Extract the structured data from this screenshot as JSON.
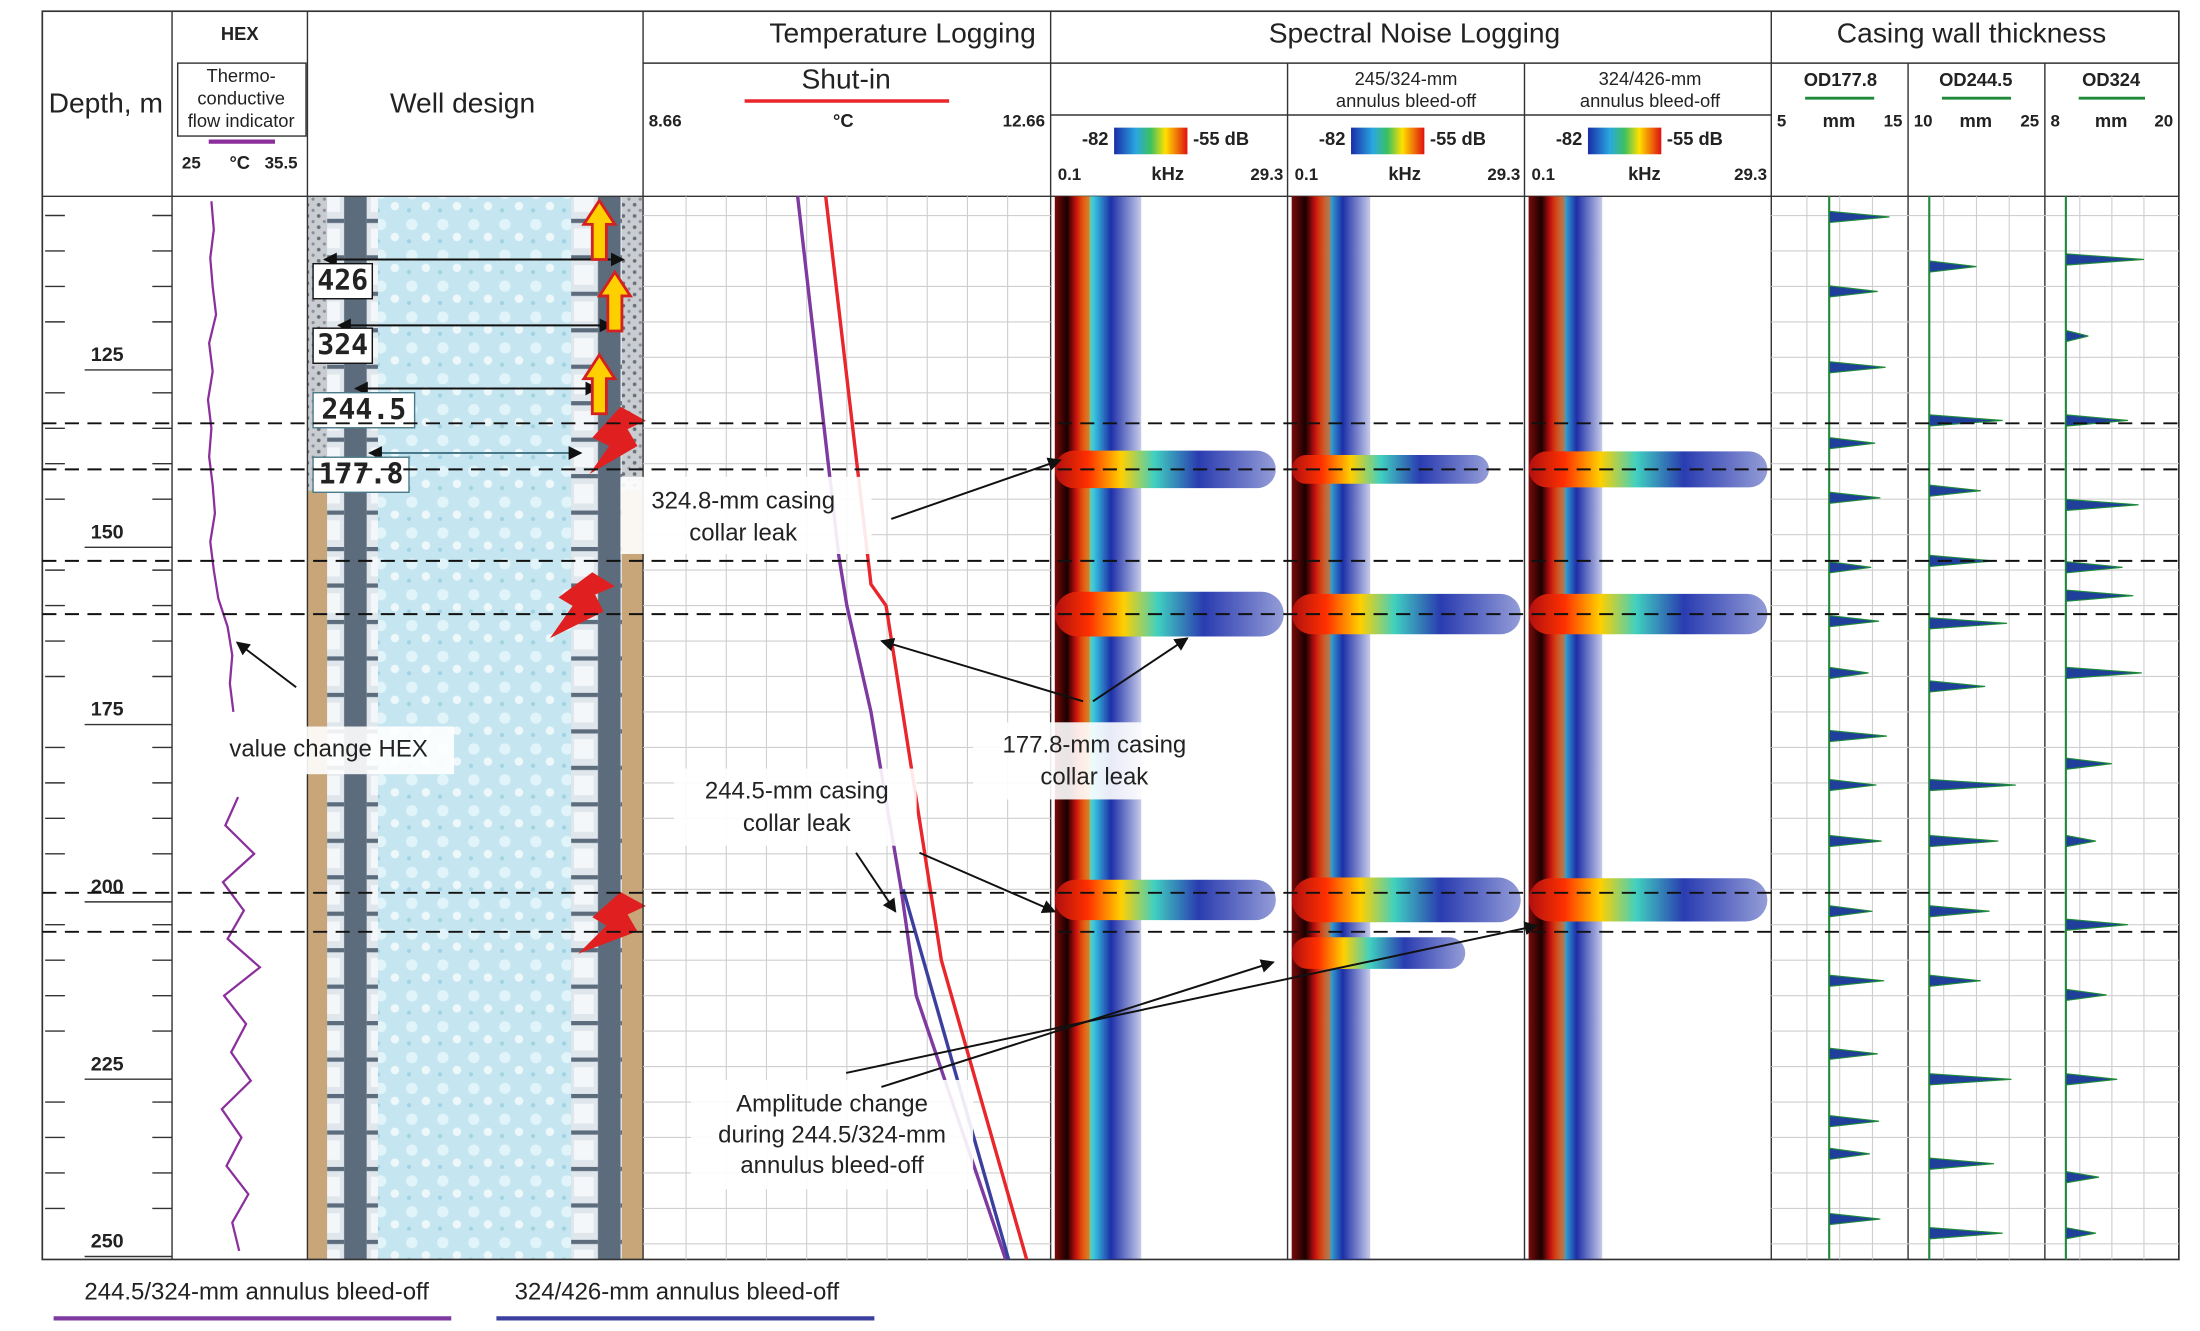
{
  "depth": {
    "label": "Depth, m",
    "ylim": [
      102.3,
      252.2
    ],
    "yticks": [
      125,
      150,
      175,
      200,
      225,
      250
    ],
    "minor_ticks": [
      105,
      110,
      115,
      120,
      130,
      135,
      140,
      145,
      155,
      160,
      165,
      170,
      180,
      185,
      190,
      195,
      205,
      210,
      215,
      220,
      230,
      235,
      240,
      245
    ]
  },
  "leak_depths": [
    134.3,
    140.8,
    153.7,
    161.2,
    200.5,
    206.0
  ],
  "groups": {
    "snl": "Spectral Noise Logging",
    "casing": "Casing wall thickness"
  },
  "chart_data": [
    {
      "type": "line",
      "title": "HEX",
      "title_lines": [
        "Thermo-",
        "conductive",
        "flow indicator"
      ],
      "xlim": [
        25,
        35.5
      ],
      "xticks": [
        25,
        35.5
      ],
      "x_unit": "°C",
      "series": [
        {
          "color": "#8b2f9c",
          "depth": [
            103,
            107,
            111,
            115,
            119,
            123,
            127,
            131,
            135,
            139,
            143,
            147,
            151,
            155,
            159,
            163,
            167,
            171,
            175,
            179,
            183,
            187,
            191,
            195,
            199,
            203,
            207,
            211,
            215,
            219,
            223,
            227,
            231,
            235,
            239,
            243,
            247,
            251
          ],
          "values": [
            27.8,
            28.0,
            27.7,
            27.9,
            28.2,
            27.6,
            27.9,
            27.5,
            27.8,
            27.6,
            27.9,
            28.1,
            27.7,
            28.0,
            28.4,
            29.2,
            29.6,
            29.4,
            29.7,
            null,
            null,
            30.1,
            29.0,
            31.5,
            28.8,
            30.6,
            29.2,
            32.0,
            28.9,
            30.8,
            29.5,
            31.2,
            28.7,
            30.4,
            29.1,
            31.0,
            29.6,
            30.2
          ]
        }
      ]
    },
    {
      "type": "line",
      "title": "Temperature Logging",
      "xlim": [
        8.66,
        12.66
      ],
      "xticks": [
        8.66,
        12.66
      ],
      "x_unit": "°C",
      "grid": true,
      "xgrid": [
        9.06,
        9.46,
        9.86,
        10.26,
        10.66,
        11.06,
        11.46,
        11.86,
        12.26
      ],
      "series": [
        {
          "name": "Shut-in",
          "color": "#e8262b",
          "depth": [
            102.3,
            157,
            160,
            210,
            252.2
          ],
          "values": [
            10.45,
            10.9,
            11.05,
            11.6,
            12.45
          ]
        },
        {
          "name": "244.5/324-mm annulus bleed-off",
          "color": "#7e3aa0",
          "depth": [
            102.3,
            153,
            160,
            175,
            200,
            215,
            252.2
          ],
          "values": [
            10.17,
            10.58,
            10.66,
            10.9,
            11.2,
            11.35,
            12.24
          ]
        },
        {
          "name": "324/426-mm annulus bleed-off",
          "color": "#3b3f9e",
          "depth": [
            200,
            252.2
          ],
          "values": [
            11.22,
            12.27
          ]
        }
      ]
    },
    {
      "type": "heatmap",
      "xlim": [
        0.1,
        29.3
      ],
      "xticks": [
        0.1,
        29.3
      ],
      "x_unit": "kHz",
      "zlim": [
        -82,
        -55
      ],
      "zticks": [
        -82,
        {
          "value": -55,
          "label": "-55 dB"
        }
      ],
      "column": {
        "core_khz": 4.5,
        "halo_khz": 11
      },
      "band_depths": [
        140.8,
        161.2,
        201.5
      ],
      "band_khz": [
        28,
        29,
        28
      ],
      "band_db": [
        -62,
        -57,
        -60
      ]
    },
    {
      "type": "heatmap",
      "title_lines": [
        "245/324-mm",
        "annulus bleed-off"
      ],
      "xlim": [
        0.1,
        29.3
      ],
      "xticks": [
        0.1,
        29.3
      ],
      "x_unit": "kHz",
      "zlim": [
        -82,
        -55
      ],
      "zticks": [
        -82,
        {
          "value": -55,
          "label": "-55 dB"
        }
      ],
      "column": {
        "core_khz": 5,
        "halo_khz": 10
      },
      "band_depths": [
        140.8,
        161.2,
        201.5,
        209
      ],
      "band_khz": [
        25,
        29,
        29,
        22
      ],
      "band_db": [
        -68,
        -60,
        -57,
        -66
      ]
    },
    {
      "type": "heatmap",
      "title_lines": [
        "324/426-mm",
        "annulus bleed-off"
      ],
      "xlim": [
        0.1,
        29.3
      ],
      "xticks": [
        0.1,
        29.3
      ],
      "x_unit": "kHz",
      "zlim": [
        -82,
        -55
      ],
      "zticks": [
        -82,
        {
          "value": -55,
          "label": "-55 dB"
        }
      ],
      "column": {
        "core_khz": 4.5,
        "halo_khz": 9
      },
      "band_depths": [
        140.8,
        161.2,
        201.5
      ],
      "band_khz": [
        29,
        29,
        29
      ],
      "band_db": [
        -63,
        -60,
        -58
      ]
    },
    {
      "type": "spike",
      "title": "OD177.8",
      "color": "#1f8a3a",
      "spike_color": "#1f3f9a",
      "xlim": [
        5,
        15
      ],
      "xticks": [
        5,
        15
      ],
      "x_unit": "mm",
      "grid": true,
      "xgrid": [
        7.5,
        10,
        12.5
      ],
      "nominal": 9.2,
      "collar_depths": [
        105.2,
        115.7,
        126.4,
        137.1,
        144.8,
        154.6,
        162.2,
        169.5,
        178.4,
        185.3,
        193.2,
        203.1,
        212.9,
        223.2,
        232.7,
        237.3,
        246.5
      ],
      "values": [
        13.8,
        12.9,
        13.5,
        12.7,
        13.1,
        12.4,
        13.0,
        12.2,
        13.6,
        12.8,
        13.2,
        12.5,
        13.4,
        12.9,
        13.0,
        12.3,
        13.1
      ]
    },
    {
      "type": "spike",
      "title": "OD244.5",
      "color": "#1f8a3a",
      "spike_color": "#1f3f9a",
      "xlim": [
        10,
        25
      ],
      "xticks": [
        10,
        25
      ],
      "x_unit": "mm",
      "grid": true,
      "xgrid": [
        13.75,
        17.5,
        21.25
      ],
      "nominal": 12.1,
      "collar_depths": [
        112.2,
        133.9,
        143.8,
        153.7,
        162.5,
        171.4,
        185.3,
        193.2,
        203.1,
        212.9,
        226.8,
        238.7,
        248.5
      ],
      "values": [
        17.5,
        20.5,
        18.0,
        19.5,
        21.0,
        18.5,
        22.0,
        20.0,
        19.0,
        18.0,
        21.5,
        19.5,
        20.5
      ]
    },
    {
      "type": "spike",
      "title": "OD324",
      "color": "#1f8a3a",
      "spike_color": "#1f3f9a",
      "xlim": [
        8,
        20
      ],
      "xticks": [
        8,
        20
      ],
      "x_unit": "mm",
      "grid": true,
      "xgrid": [
        11,
        14,
        17
      ],
      "nominal": 9.7,
      "collar_depths": [
        111.2,
        122.0,
        133.9,
        145.8,
        154.6,
        158.6,
        169.5,
        182.3,
        193.2,
        205.0,
        214.9,
        226.8,
        240.6,
        248.5
      ],
      "values": [
        17.0,
        11.8,
        15.5,
        16.5,
        15.0,
        16.0,
        16.8,
        14.0,
        12.5,
        15.5,
        13.5,
        14.5,
        12.8,
        12.5
      ]
    }
  ],
  "well_design": {
    "title": "Well design",
    "casings": [
      "426",
      "324",
      "244.5",
      "177.8"
    ]
  },
  "annotations": [
    {
      "lines": [
        "324.8-mm casing",
        "collar leak"
      ]
    },
    {
      "lines": [
        "177.8-mm casing",
        "collar leak"
      ]
    },
    {
      "lines": [
        "244.5-mm casing",
        "collar leak"
      ]
    },
    {
      "lines": [
        "value change HEX"
      ]
    },
    {
      "lines": [
        "Amplitude change",
        "during 244.5/324-mm",
        "annulus bleed-off"
      ]
    }
  ]
}
